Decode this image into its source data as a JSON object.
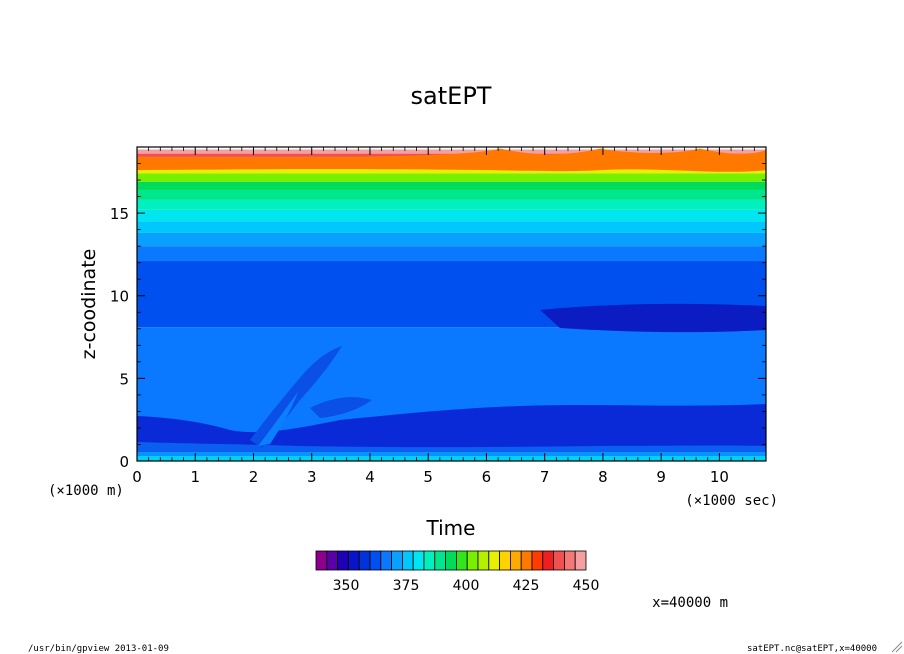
{
  "chart_data": {
    "type": "heatmap",
    "title": "satEPT",
    "xlabel": "Time",
    "ylabel": "z-coodinate",
    "x_unit": "(×1000 sec)",
    "y_unit": "(×1000 m)",
    "xlim": [
      0,
      10.8
    ],
    "ylim": [
      0,
      19.0
    ],
    "x_ticks": [
      "0",
      "1",
      "2",
      "3",
      "4",
      "5",
      "6",
      "7",
      "8",
      "9",
      "10"
    ],
    "y_ticks": [
      "0",
      "5",
      "10",
      "15"
    ],
    "colorbar": {
      "min": 337.5,
      "max": 450,
      "step": 5,
      "tick_labels": [
        "350",
        "375",
        "400",
        "425",
        "450"
      ],
      "colors": [
        "#8d008d",
        "#5a00a8",
        "#1e00b4",
        "#0a14c8",
        "#0032dc",
        "#0050f0",
        "#0a78ff",
        "#0aa0ff",
        "#00c8ff",
        "#00e6f0",
        "#00f0be",
        "#00e68c",
        "#00dc5a",
        "#32e61e",
        "#78f000",
        "#b4f000",
        "#e6f000",
        "#ffd200",
        "#ffaa00",
        "#ff7800",
        "#ff3c00",
        "#f01e1e",
        "#f05050",
        "#f57878",
        "#f5a0a0"
      ]
    },
    "annotation": "x=40000 m"
  },
  "footer": {
    "left": "/usr/bin/gpview  2013-01-09",
    "right": "satEPT.nc@satEPT,x=40000"
  }
}
